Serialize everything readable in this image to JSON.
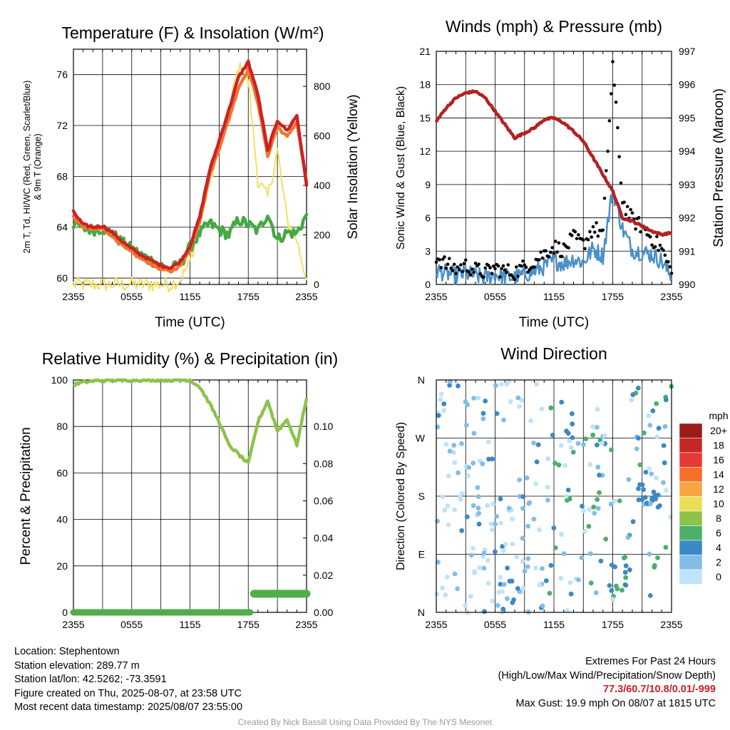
{
  "chart_data": [
    {
      "type": "line",
      "title": "Temperature (F) & Insolation (W/m²)",
      "xlabel": "Time (UTC)",
      "ylabel": "2m T, Td, HI/WC (Red, Green, Scarlet/Blue) & 9m T (Orange)",
      "ylabel_line1": "2m T, Td, HI/WC (Red, Green, Scarlet/Blue)",
      "ylabel_line2": "& 9m T (Orange)",
      "y2label": "Solar Insolation (Yellow)",
      "x_ticks": [
        "2355",
        "0555",
        "1155",
        "1755",
        "2355"
      ],
      "ylim": [
        59.5,
        78
      ],
      "y_ticks": [
        60,
        64,
        68,
        72,
        76
      ],
      "y2lim": [
        0,
        950
      ],
      "y2_ticks": [
        0,
        200,
        400,
        600,
        800
      ],
      "x": [
        0,
        1,
        2,
        3,
        4,
        5,
        6,
        7,
        8,
        9,
        10,
        11,
        12,
        13,
        14,
        15,
        16,
        17,
        18,
        19,
        20,
        21,
        22,
        23,
        24
      ],
      "series": [
        {
          "color": "#cc2222",
          "axis": "left",
          "values": [
            65.2,
            64.2,
            64.0,
            64.1,
            63.6,
            62.9,
            62.3,
            61.8,
            61.4,
            61.0,
            60.8,
            61.3,
            62.5,
            64.8,
            68.4,
            70.8,
            73.2,
            75.8,
            77.0,
            74.4,
            70.0,
            72.4,
            71.6,
            72.8,
            67.3
          ]
        },
        {
          "color": "#ee7733",
          "axis": "left",
          "values": [
            64.8,
            64.0,
            63.8,
            63.9,
            63.3,
            62.6,
            62.0,
            61.5,
            61.1,
            60.7,
            60.5,
            61.0,
            62.3,
            64.5,
            68.0,
            70.2,
            72.5,
            75.0,
            76.4,
            73.8,
            69.6,
            71.9,
            71.1,
            72.3,
            67.5
          ]
        },
        {
          "color": "#44aa44",
          "axis": "left",
          "values": [
            64.3,
            63.9,
            63.8,
            63.9,
            63.5,
            62.8,
            62.3,
            61.8,
            61.4,
            61.0,
            60.7,
            61.1,
            62.4,
            63.5,
            64.3,
            63.8,
            63.4,
            64.6,
            64.2,
            63.7,
            65.1,
            63.0,
            63.6,
            63.5,
            65.0
          ]
        },
        {
          "color": "#f2e060",
          "axis": "right",
          "values": [
            0,
            0,
            0,
            0,
            0,
            0,
            0,
            0,
            0,
            0,
            0,
            20,
            90,
            240,
            410,
            560,
            700,
            880,
            820,
            420,
            350,
            540,
            260,
            180,
            20
          ]
        }
      ]
    },
    {
      "type": "scatter",
      "title": "Winds (mph) & Pressure (mb)",
      "xlabel": "Time (UTC)",
      "ylabel": "Sonic Wind & Gust (Blue, Black)",
      "y2label": "Station Pressure (Maroon)",
      "x_ticks": [
        "2355",
        "0555",
        "1155",
        "1755",
        "2355"
      ],
      "ylim": [
        0,
        21
      ],
      "y_ticks": [
        0,
        3,
        6,
        9,
        12,
        15,
        18,
        21
      ],
      "y2lim": [
        990,
        997
      ],
      "y2_ticks": [
        990,
        991,
        992,
        993,
        994,
        995,
        996,
        997
      ],
      "x": [
        0,
        1,
        2,
        3,
        4,
        5,
        6,
        7,
        8,
        9,
        10,
        11,
        12,
        13,
        14,
        15,
        16,
        17,
        18,
        19,
        20,
        21,
        22,
        23,
        24
      ],
      "series": [
        {
          "name": "",
          "kind": "line",
          "color": "#b22222",
          "axis": "right",
          "values": [
            994.9,
            995.3,
            995.6,
            995.75,
            995.8,
            995.6,
            995.2,
            994.8,
            994.4,
            994.55,
            994.7,
            994.95,
            995.0,
            994.85,
            994.6,
            994.3,
            993.8,
            993.3,
            992.8,
            992.0,
            991.9,
            991.75,
            991.6,
            991.5,
            991.55
          ]
        },
        {
          "name": "",
          "kind": "line",
          "color": "#4a90c8",
          "axis": "left",
          "values": [
            1.3,
            1.0,
            0.8,
            1.0,
            0.8,
            0.6,
            0.9,
            0.7,
            0.6,
            0.9,
            1.2,
            1.6,
            2.1,
            1.9,
            2.3,
            2.0,
            3.2,
            2.6,
            8.6,
            5.0,
            3.1,
            2.9,
            2.7,
            2.1,
            0.6
          ]
        },
        {
          "name": "",
          "kind": "points",
          "color": "#000000",
          "axis": "left",
          "values": [
            2.5,
            1.8,
            1.4,
            1.7,
            1.3,
            1.1,
            1.5,
            1.2,
            1.1,
            1.6,
            2.1,
            2.8,
            3.4,
            3.1,
            4.2,
            3.6,
            5.1,
            4.6,
            19.9,
            7.5,
            5.8,
            5.2,
            4.1,
            3.2,
            1.0
          ]
        }
      ]
    },
    {
      "type": "line",
      "title": "Relative Humidity (%) & Precipitation (in)",
      "ylabel": "Percent & Precipitation",
      "x_ticks": [
        "2355",
        "0555",
        "1155",
        "1755",
        "2355"
      ],
      "ylim": [
        0,
        100
      ],
      "y_ticks": [
        0,
        20,
        40,
        60,
        80,
        100
      ],
      "y2lim": [
        0,
        0.125
      ],
      "y2_ticks": [
        "0.00",
        "0.02",
        "0.04",
        "0.06",
        "0.08",
        "0.10"
      ],
      "x": [
        0,
        1,
        2,
        3,
        4,
        5,
        6,
        7,
        8,
        9,
        10,
        11,
        12,
        13,
        14,
        15,
        16,
        17,
        18,
        19,
        20,
        21,
        22,
        23,
        24
      ],
      "series": [
        {
          "color": "#8cc34a",
          "axis": "left",
          "kind": "line",
          "values": [
            98,
            99,
            99.5,
            99.8,
            100,
            100,
            100,
            100,
            100,
            100,
            100,
            100,
            100,
            97,
            90,
            82,
            72,
            68,
            64,
            82,
            91,
            78,
            83,
            72,
            92
          ]
        },
        {
          "color": "#4fae4a",
          "axis": "right",
          "kind": "thick",
          "values": [
            0,
            0,
            0,
            0,
            0,
            0,
            0,
            0,
            0,
            0,
            0,
            0,
            0,
            0,
            0,
            0,
            0,
            0,
            0,
            0.01,
            0.01,
            0.01,
            0.01,
            0.01,
            0.01
          ]
        }
      ]
    },
    {
      "type": "scatter",
      "title": "Wind Direction",
      "ylabel": "Direction (Colored By Speed)",
      "x_ticks": [
        "2355",
        "0555",
        "1155",
        "1755",
        "2355"
      ],
      "y_ticks": [
        "N",
        "E",
        "S",
        "W",
        "N"
      ],
      "ylim": [
        0,
        360
      ],
      "legend_title": "mph",
      "legend_labels": [
        "20+",
        "18",
        "16",
        "14",
        "12",
        "10",
        "8",
        "6",
        "4",
        "2",
        "0"
      ],
      "legend_colors": [
        "#9b1c1c",
        "#c62828",
        "#e53935",
        "#f4702b",
        "#f6a540",
        "#e9df55",
        "#8cc34a",
        "#4caf6a",
        "#3c88c4",
        "#82bde8",
        "#bfe3f7"
      ]
    }
  ],
  "info": {
    "location": "Location: Stephentown",
    "elevation": "Station elevation: 289.77 m",
    "latlon": "Station lat/lon: 42.5262; -73.3591",
    "created": "Figure created on Thu, 2025-08-07, at 23:58 UTC",
    "recent": "Most recent data timestamp: 2025/08/07 23:55:00"
  },
  "extremes": {
    "title": "Extremes For Past 24 Hours",
    "subtitle": "(High/Low/Max Wind/Precipitation/Snow Depth)",
    "values": "77.3/60.7/10.8/0.01/-999",
    "gust": "Max Gust: 19.9 mph On 08/07 at 1815 UTC"
  },
  "credit": "Created By Nick Bassill Using Data Provided By The NYS Mesonet"
}
